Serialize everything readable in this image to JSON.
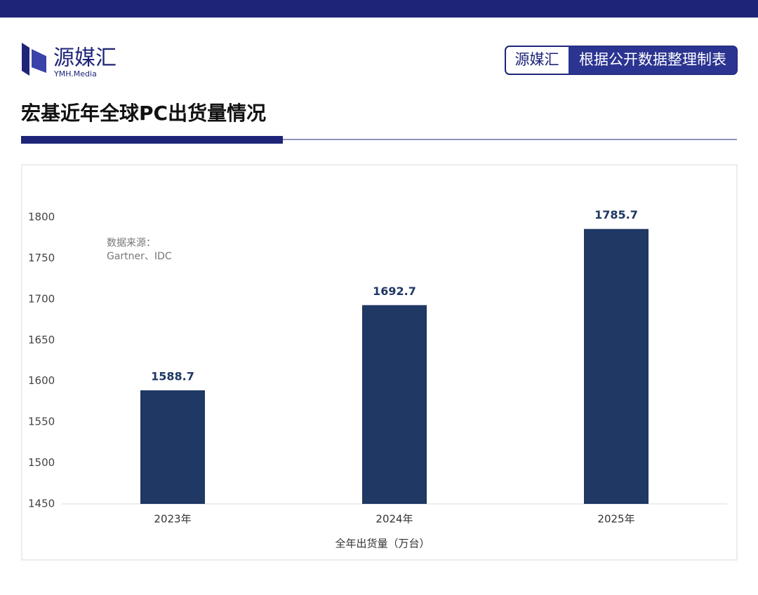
{
  "header": {
    "logo_text": "源媒汇",
    "logo_sub": "YMH.Media",
    "tag_brand": "源媒汇",
    "tag_text": "根据公开数据整理制表",
    "title": "宏基近年全球PC出货量情况"
  },
  "chart_data": {
    "type": "bar",
    "categories": [
      "2023年",
      "2024年",
      "2025年"
    ],
    "values": [
      1588.7,
      1692.7,
      1785.7
    ],
    "color": "#1f3864",
    "ylim": [
      1450,
      1800
    ],
    "yticks": [
      1450,
      1500,
      1550,
      1600,
      1650,
      1700,
      1750,
      1800
    ],
    "grid": false,
    "x_label": "全年出货量（万台）",
    "annotation": [
      "数据来源：",
      "Gartner、IDC"
    ]
  }
}
